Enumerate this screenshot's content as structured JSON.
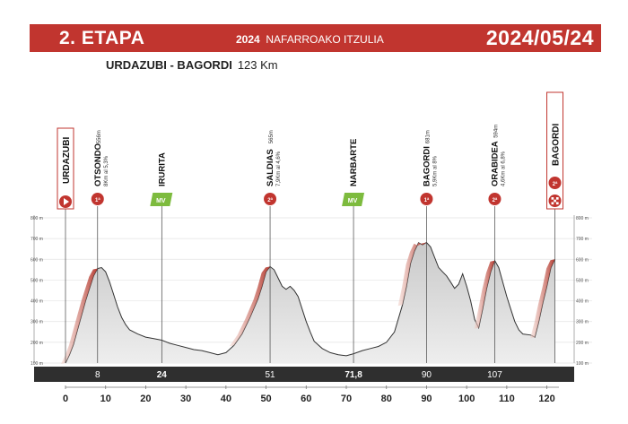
{
  "header": {
    "stage": "2. ETAPA",
    "race_year": "2024",
    "race_name": "NAFARROAKO ITZULIA",
    "date": "2024/05/24"
  },
  "route": {
    "name": "URDAZUBI - BAGORDI",
    "distance": "123 Km"
  },
  "colors": {
    "banner": "#c1352f",
    "climb_ribbon": "#b3352a",
    "sprint": "#7dbb3e",
    "bar": "#2f2f2f"
  },
  "chart_data": {
    "type": "area",
    "xlim": [
      0,
      123
    ],
    "ylim": [
      100,
      800
    ],
    "x_ticks": [
      0,
      10,
      20,
      30,
      40,
      50,
      60,
      70,
      80,
      90,
      100,
      110,
      120
    ],
    "y_ticks": [
      "100 m",
      "200 m",
      "300 m",
      "400 m",
      "500 m",
      "600 m",
      "700 m",
      "800 m"
    ],
    "profile": [
      [
        0,
        100
      ],
      [
        1,
        140
      ],
      [
        2,
        190
      ],
      [
        3,
        260
      ],
      [
        4,
        330
      ],
      [
        5,
        400
      ],
      [
        6,
        460
      ],
      [
        7,
        520
      ],
      [
        8,
        556
      ],
      [
        9,
        560
      ],
      [
        10,
        540
      ],
      [
        11,
        490
      ],
      [
        12,
        430
      ],
      [
        13,
        370
      ],
      [
        14,
        320
      ],
      [
        15,
        285
      ],
      [
        16,
        260
      ],
      [
        18,
        240
      ],
      [
        20,
        225
      ],
      [
        22,
        218
      ],
      [
        24,
        210
      ],
      [
        26,
        195
      ],
      [
        28,
        185
      ],
      [
        30,
        175
      ],
      [
        32,
        165
      ],
      [
        34,
        160
      ],
      [
        36,
        150
      ],
      [
        38,
        140
      ],
      [
        40,
        150
      ],
      [
        42,
        185
      ],
      [
        44,
        240
      ],
      [
        46,
        320
      ],
      [
        48,
        410
      ],
      [
        49,
        470
      ],
      [
        50,
        540
      ],
      [
        51,
        565
      ],
      [
        52,
        550
      ],
      [
        53,
        510
      ],
      [
        54,
        470
      ],
      [
        55,
        455
      ],
      [
        56,
        470
      ],
      [
        57,
        450
      ],
      [
        58,
        420
      ],
      [
        59,
        360
      ],
      [
        60,
        300
      ],
      [
        61,
        250
      ],
      [
        62,
        205
      ],
      [
        64,
        170
      ],
      [
        66,
        150
      ],
      [
        68,
        140
      ],
      [
        70,
        135
      ],
      [
        71.8,
        145
      ],
      [
        74,
        160
      ],
      [
        76,
        170
      ],
      [
        78,
        180
      ],
      [
        80,
        200
      ],
      [
        82,
        250
      ],
      [
        84,
        380
      ],
      [
        85,
        470
      ],
      [
        86,
        580
      ],
      [
        87,
        640
      ],
      [
        88,
        680
      ],
      [
        89,
        670
      ],
      [
        90,
        681
      ],
      [
        91,
        660
      ],
      [
        92,
        610
      ],
      [
        93,
        560
      ],
      [
        94,
        540
      ],
      [
        95,
        520
      ],
      [
        96,
        490
      ],
      [
        97,
        460
      ],
      [
        98,
        480
      ],
      [
        99,
        530
      ],
      [
        100,
        470
      ],
      [
        101,
        400
      ],
      [
        102,
        310
      ],
      [
        103,
        270
      ],
      [
        104,
        360
      ],
      [
        105,
        460
      ],
      [
        106,
        540
      ],
      [
        107,
        594
      ],
      [
        108,
        560
      ],
      [
        109,
        490
      ],
      [
        110,
        420
      ],
      [
        111,
        360
      ],
      [
        112,
        300
      ],
      [
        113,
        260
      ],
      [
        114,
        240
      ],
      [
        116,
        235
      ],
      [
        117,
        225
      ],
      [
        118,
        300
      ],
      [
        119,
        390
      ],
      [
        120,
        470
      ],
      [
        121,
        560
      ],
      [
        122,
        600
      ]
    ],
    "climb_ribbons": [
      [
        0,
        8
      ],
      [
        42,
        51
      ],
      [
        84,
        90
      ],
      [
        103,
        107
      ],
      [
        117,
        122
      ]
    ],
    "bar_labels": [
      {
        "x": 8,
        "label": "8"
      },
      {
        "x": 24,
        "label": "24"
      },
      {
        "x": 51,
        "label": "51"
      },
      {
        "x": 71.8,
        "label": "71,8"
      },
      {
        "x": 90,
        "label": "90"
      },
      {
        "x": 107,
        "label": "107"
      }
    ],
    "markers": [
      {
        "x": 0,
        "kind": "start",
        "name": "URDAZUBI",
        "sub1": "",
        "sub2": "",
        "badge": ""
      },
      {
        "x": 8,
        "kind": "climb",
        "name": "OTSONDO",
        "sub1": "556m",
        "sub2": "8Km al 5,3%",
        "badge": "1ª"
      },
      {
        "x": 24,
        "kind": "sprint",
        "name": "IRURITA",
        "sub1": "",
        "sub2": "",
        "badge": "MV"
      },
      {
        "x": 51,
        "kind": "climb",
        "name": "SALDIAS",
        "sub1": "565m",
        "sub2": "7,9Km al 4,6%",
        "badge": "2ª"
      },
      {
        "x": 71.8,
        "kind": "sprint",
        "name": "NARBARTE",
        "sub1": "",
        "sub2": "",
        "badge": "MV"
      },
      {
        "x": 90,
        "kind": "climb",
        "name": "BAGORDI",
        "sub1": "681m",
        "sub2": "5,9Km al 8%",
        "badge": "1ª"
      },
      {
        "x": 107,
        "kind": "climb",
        "name": "ORABIDEA",
        "sub1": "594m",
        "sub2": "4,6Km al 6,8%",
        "badge": "2ª"
      },
      {
        "x": 122,
        "kind": "finish",
        "name": "BAGORDI",
        "sub1": "",
        "sub2": "",
        "badge": "2ª"
      }
    ]
  }
}
